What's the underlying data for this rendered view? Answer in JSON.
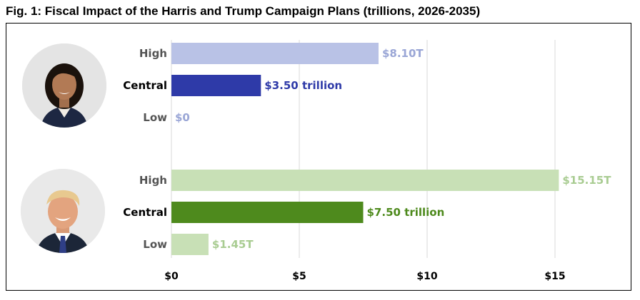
{
  "title": "Fig. 1: Fiscal Impact of the Harris and Trump Campaign Plans (trillions, 2026-2035)",
  "portraits": [
    {
      "name": "Harris",
      "icon": "harris-portrait"
    },
    {
      "name": "Trump",
      "icon": "trump-portrait"
    }
  ],
  "colors": {
    "harris_light": "#b9c2e6",
    "harris_dark": "#2e3aa8",
    "harris_light_text": "#9aa6d6",
    "trump_light": "#c8e0b6",
    "trump_dark": "#4e8a1d",
    "trump_light_text": "#a9cc92",
    "grid": "#d9d9d9",
    "central_label": "#000000",
    "side_label": "#555555"
  },
  "chart_data": {
    "type": "bar",
    "orientation": "horizontal",
    "title": "Fig. 1: Fiscal Impact of the Harris and Trump Campaign Plans (trillions, 2026-2035)",
    "xlim": [
      0,
      17.5
    ],
    "xticks": [
      {
        "value": 0,
        "label": "$0"
      },
      {
        "value": 5,
        "label": "$5"
      },
      {
        "value": 10,
        "label": "$10"
      },
      {
        "value": 15,
        "label": "$15"
      }
    ],
    "grid": true,
    "groups": [
      {
        "candidate": "Harris",
        "bars": [
          {
            "category": "High",
            "value": 8.1,
            "label": "$8.10T",
            "emphasis": false
          },
          {
            "category": "Central",
            "value": 3.5,
            "label": "$3.50 trillion",
            "emphasis": true
          },
          {
            "category": "Low",
            "value": 0,
            "label": "$0",
            "emphasis": false
          }
        ]
      },
      {
        "candidate": "Trump",
        "bars": [
          {
            "category": "High",
            "value": 15.15,
            "label": "$15.15T",
            "emphasis": false
          },
          {
            "category": "Central",
            "value": 7.5,
            "label": "$7.50 trillion",
            "emphasis": true
          },
          {
            "category": "Low",
            "value": 1.45,
            "label": "$1.45T",
            "emphasis": false
          }
        ]
      }
    ]
  }
}
